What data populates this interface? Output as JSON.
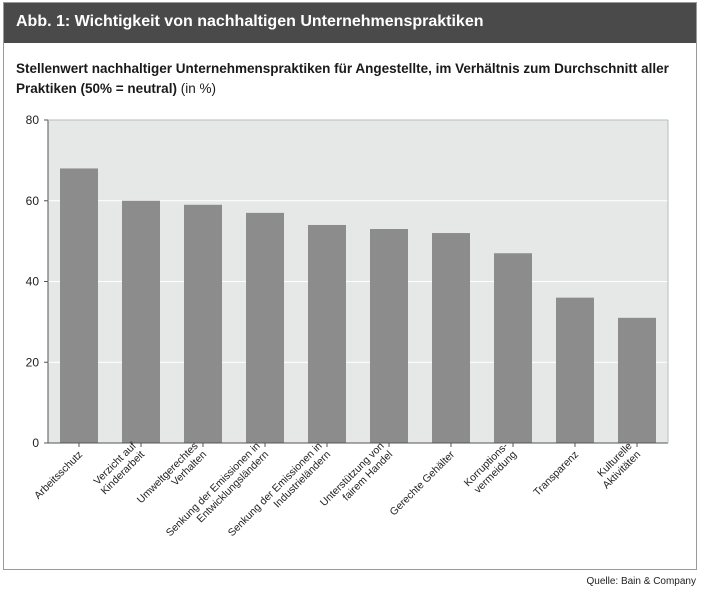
{
  "header": {
    "title": "Abb. 1: Wichtigkeit von nachhaltigen Unternehmenspraktiken"
  },
  "chart_data": {
    "type": "bar",
    "title": "Stellenwert nachhaltiger Unternehmenspraktiken für Angestellte, im Verhältnis zum Durchschnitt aller Praktiken (50% = neutral)",
    "title_unit": "(in %)",
    "xlabel": "",
    "ylabel": "",
    "ylim": [
      0,
      80
    ],
    "yticks": [
      0,
      20,
      40,
      60,
      80
    ],
    "grid": true,
    "legend": "none",
    "categories": [
      [
        "Arbeitsschutz"
      ],
      [
        "Verzicht auf",
        "Kinderarbeit"
      ],
      [
        "Umweltgerechtes",
        "Verhalten"
      ],
      [
        "Senkung der Emissionen in",
        "Entwicklungsländern"
      ],
      [
        "Senkung der Emissionen in",
        "Industrieländern"
      ],
      [
        "Unterstützung von",
        "fairem Handel"
      ],
      [
        "Gerechte Gehälter"
      ],
      [
        "Korruptions-",
        "vermeidung"
      ],
      [
        "Transparenz"
      ],
      [
        "Kulturelle",
        "Aktivitäten"
      ]
    ],
    "values": [
      68,
      60,
      59,
      57,
      54,
      53,
      52,
      47,
      36,
      31
    ],
    "colors": {
      "bar": "#8c8c8c",
      "plot_bg": "#e6e8e8",
      "grid": "#ffffff",
      "header": "#4a4a4a"
    }
  },
  "footer": {
    "source": "Quelle: Bain & Company"
  }
}
